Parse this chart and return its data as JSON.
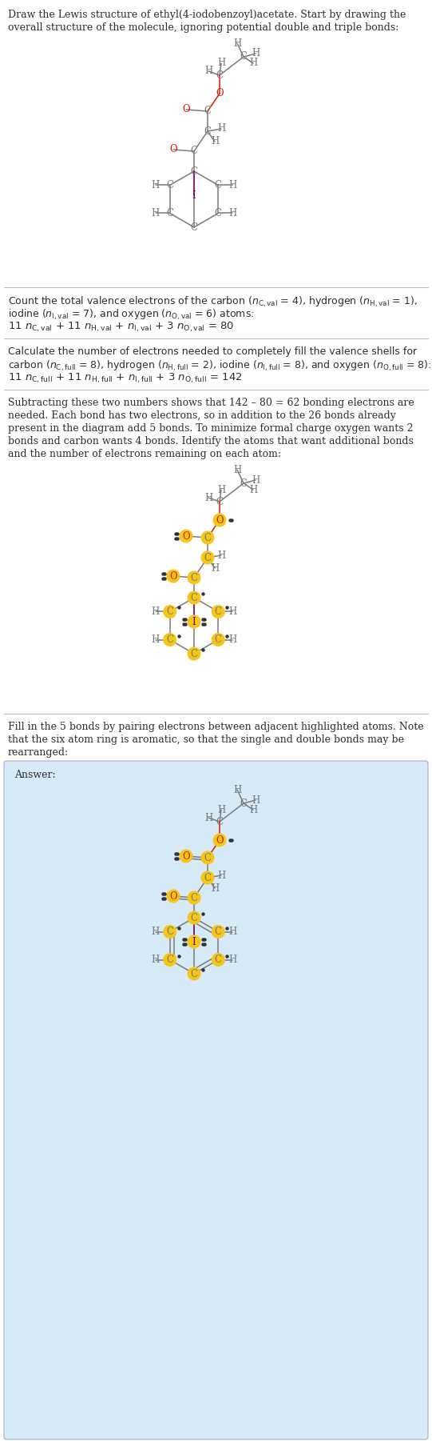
{
  "bg_color": "#ffffff",
  "text_color": "#2d2d2d",
  "atom_C_color": "#7a7a7a",
  "atom_O_color": "#cc2200",
  "atom_H_color": "#7a7a7a",
  "atom_I_color": "#7b0080",
  "bond_color": "#7a7a7a",
  "highlight_color": "#f5c518",
  "answer_box_color": "#d6eaf8",
  "divider_color": "#bbbbbb",
  "font_size_text": 9.0,
  "font_size_atom": 8.5
}
